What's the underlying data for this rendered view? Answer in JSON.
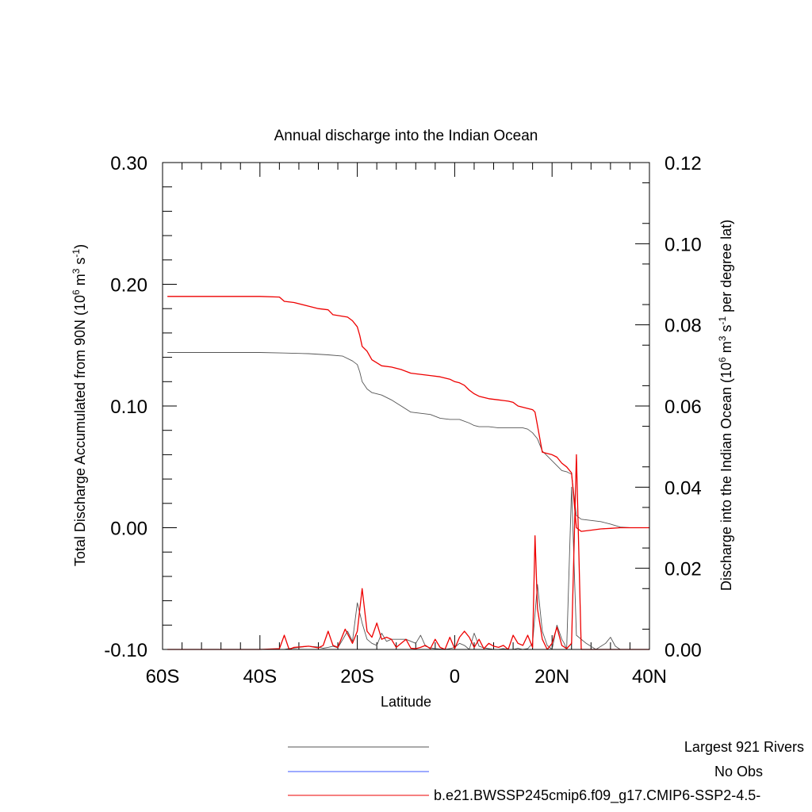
{
  "chart_data": {
    "type": "line",
    "title": "Annual discharge into the Indian Ocean",
    "xlabel": "Latitude",
    "ylabel_left": {
      "prefix": "Total Discharge Accumulated from 90N (10",
      "exp1": "6",
      "mid1": " m",
      "exp2": "3",
      "mid2": " s",
      "exp3": "-1",
      "suffix": ")"
    },
    "ylabel_right": {
      "prefix": "Discharge into the Indian Ocean (10",
      "exp1": "6",
      "mid1": " m",
      "exp2": "3",
      "mid2": " s",
      "exp3": "-1",
      "suffix": " per degree lat)"
    },
    "xlim": [
      -60,
      40
    ],
    "ylim_left": [
      -0.1,
      0.3
    ],
    "ylim_right": [
      0,
      0.12
    ],
    "x_ticks": [
      {
        "value": -60,
        "label": "60S"
      },
      {
        "value": -40,
        "label": "40S"
      },
      {
        "value": -20,
        "label": "20S"
      },
      {
        "value": 0,
        "label": "0"
      },
      {
        "value": 20,
        "label": "20N"
      },
      {
        "value": 40,
        "label": "40N"
      }
    ],
    "y_ticks_left": [
      {
        "value": 0.3,
        "label": "0.30"
      },
      {
        "value": 0.2,
        "label": "0.20"
      },
      {
        "value": 0.1,
        "label": "0.10"
      },
      {
        "value": 0.0,
        "label": "0.00"
      },
      {
        "value": -0.1,
        "label": "-0.10"
      }
    ],
    "y_ticks_right": [
      {
        "value": 0.12,
        "label": "0.12"
      },
      {
        "value": 0.1,
        "label": "0.10"
      },
      {
        "value": 0.08,
        "label": "0.08"
      },
      {
        "value": 0.06,
        "label": "0.06"
      },
      {
        "value": 0.04,
        "label": "0.04"
      },
      {
        "value": 0.02,
        "label": "0.02"
      },
      {
        "value": 0.0,
        "label": "0.00"
      }
    ],
    "series": [
      {
        "name": "Largest 921 Rivers",
        "color": "#555555",
        "axis": "left",
        "x": [
          -59,
          -50,
          -40,
          -35,
          -30,
          -26,
          -23,
          -21,
          -20,
          -19.5,
          -19,
          -18,
          -17,
          -15,
          -13,
          -11,
          -9,
          -7,
          -5,
          -3,
          -1,
          1,
          3,
          4,
          5,
          7,
          9,
          11,
          13,
          14,
          15,
          16,
          17,
          18,
          19,
          20,
          21,
          22,
          23,
          24,
          25,
          26,
          28,
          30,
          32,
          34,
          36,
          38,
          40
        ],
        "y": [
          0.144,
          0.144,
          0.144,
          0.1435,
          0.143,
          0.142,
          0.141,
          0.137,
          0.134,
          0.128,
          0.12,
          0.114,
          0.111,
          0.109,
          0.105,
          0.1,
          0.095,
          0.094,
          0.093,
          0.09,
          0.089,
          0.089,
          0.086,
          0.084,
          0.083,
          0.083,
          0.082,
          0.082,
          0.082,
          0.082,
          0.081,
          0.078,
          0.073,
          0.063,
          0.059,
          0.055,
          0.051,
          0.047,
          0.046,
          0.044,
          0.01,
          0.007,
          0.006,
          0.005,
          0.003,
          0.0005,
          0.0,
          0.0,
          0.0
        ]
      },
      {
        "name": "No Obs",
        "color": "#3a55ff",
        "axis": "left",
        "x": [],
        "y": []
      },
      {
        "name": "b.e21.BWSSP245cmip6.f09_g17.CMIP6-SSP2-4.5-",
        "color": "#ee0000",
        "axis": "left",
        "x": [
          -59,
          -50,
          -40,
          -36,
          -35,
          -33,
          -30,
          -28,
          -26,
          -25,
          -22,
          -21,
          -20,
          -19.5,
          -19,
          -18,
          -17,
          -15,
          -13,
          -11,
          -9,
          -7,
          -5,
          -3,
          -1,
          0,
          1,
          2,
          3,
          4,
          5,
          7,
          9,
          11,
          12,
          13,
          15,
          16,
          16.5,
          17,
          18,
          19,
          20,
          21,
          22,
          23,
          24,
          25,
          26,
          28,
          30,
          32,
          34,
          36,
          38,
          40
        ],
        "y": [
          0.19,
          0.19,
          0.19,
          0.1895,
          0.186,
          0.185,
          0.182,
          0.18,
          0.179,
          0.175,
          0.173,
          0.17,
          0.165,
          0.158,
          0.149,
          0.145,
          0.138,
          0.133,
          0.132,
          0.13,
          0.127,
          0.126,
          0.125,
          0.124,
          0.122,
          0.12,
          0.119,
          0.117,
          0.113,
          0.11,
          0.108,
          0.106,
          0.105,
          0.104,
          0.103,
          0.1,
          0.098,
          0.097,
          0.095,
          0.084,
          0.062,
          0.061,
          0.06,
          0.058,
          0.053,
          0.05,
          0.045,
          0.0,
          -0.003,
          -0.002,
          -0.001,
          -0.0005,
          0.0,
          0.0,
          0.0,
          0.0
        ]
      },
      {
        "name": "Largest 921 Rivers (per degree lat)",
        "color": "#555555",
        "axis": "right",
        "x": [
          -59,
          -50,
          -40,
          -36,
          -35,
          -34,
          -30,
          -28,
          -27,
          -26,
          -25,
          -24,
          -22,
          -21,
          -20,
          -19,
          -18,
          -17,
          -16,
          -15,
          -14,
          -13,
          -12,
          -10,
          -8,
          -7,
          -6,
          -5,
          -4,
          -3,
          -2,
          -1,
          0,
          1,
          2,
          3,
          4,
          5,
          6,
          7,
          8,
          9,
          10,
          11,
          12,
          13,
          14,
          15,
          16,
          17,
          18,
          19,
          20,
          21,
          22,
          22.5,
          23,
          24,
          25,
          27,
          29,
          31,
          32,
          33,
          34,
          36,
          38,
          40
        ],
        "y": [
          0.0,
          0.0,
          0.0,
          0.0,
          0.0,
          0.0002,
          0.0008,
          0.0006,
          0.0003,
          0.0005,
          0.0008,
          0.0004,
          0.0045,
          0.002,
          0.0115,
          0.0065,
          0.0025,
          0.0015,
          0.001,
          0.004,
          0.002,
          0.0025,
          0.0025,
          0.0025,
          0.0015,
          0.0035,
          0.0008,
          0.0004,
          0.0002,
          0.0001,
          0.0,
          0.0002,
          0.0005,
          0.0015,
          0.001,
          0.0,
          0.004,
          0.0008,
          0.0004,
          0.0002,
          0.0,
          0.0,
          0.0002,
          0.0,
          0.0,
          0.0003,
          0.0,
          0.0002,
          0.0015,
          0.016,
          0.0045,
          0.001,
          0.0,
          0.006,
          0.0025,
          0.0015,
          0.0,
          0.04,
          0.0035,
          0.0015,
          0.0,
          0.0015,
          0.003,
          0.0008,
          0.0,
          0.0,
          0.0,
          0.0
        ]
      },
      {
        "name": "b.e21.BWSSP245cmip6.f09_g17.CMIP6-SSP2-4.5- (per degree lat)",
        "color": "#ee0000",
        "axis": "right",
        "x": [
          -59,
          -50,
          -40,
          -36,
          -35,
          -34,
          -33,
          -30,
          -28,
          -27,
          -26,
          -25,
          -24,
          -22.5,
          -21,
          -20,
          -19,
          -18,
          -17,
          -16,
          -15,
          -14,
          -13,
          -12,
          -11,
          -10,
          -9,
          -8,
          -7,
          -6,
          -5,
          -4,
          -3,
          -2,
          -1,
          0,
          1,
          2,
          3,
          4,
          5,
          6,
          7,
          8,
          9,
          10,
          11,
          12,
          13,
          14,
          15,
          16,
          16.5,
          17,
          18,
          19,
          20,
          21,
          22,
          23,
          24,
          25,
          26,
          28,
          30,
          32,
          34,
          36,
          38,
          40
        ],
        "y": [
          0.0,
          0.0,
          0.0,
          0.0002,
          0.0035,
          0.0,
          0.0005,
          0.0008,
          0.0004,
          0.001,
          0.0045,
          0.001,
          0.0005,
          0.005,
          0.0015,
          0.0045,
          0.015,
          0.0045,
          0.003,
          0.0065,
          0.0025,
          0.003,
          0.0025,
          0.0005,
          0.0015,
          0.0025,
          0.0003,
          0.0002,
          0.0005,
          0.001,
          0.0002,
          0.0025,
          0.0005,
          0.0,
          0.003,
          0.0002,
          0.003,
          0.0045,
          0.003,
          0.0005,
          0.0025,
          0.0002,
          0.0015,
          0.0008,
          0.0005,
          0.001,
          0.0,
          0.0035,
          0.0015,
          0.001,
          0.0035,
          0.0005,
          0.028,
          0.01,
          0.0025,
          0.0,
          0.0015,
          0.0055,
          0.001,
          0.0002,
          0.0015,
          0.048,
          0.0,
          0.0,
          0.0,
          0.0,
          0.0,
          0.0,
          0.0,
          0.0
        ]
      }
    ],
    "legend": {
      "placement": "bottom",
      "entries": [
        {
          "label": "Largest 921 Rivers",
          "color": "#555555"
        },
        {
          "label": "No Obs",
          "color": "#3a55ff"
        },
        {
          "label": "b.e21.BWSSP245cmip6.f09_g17.CMIP6-SSP2-4.5-",
          "color": "#ee0000"
        }
      ]
    },
    "grid": false
  }
}
